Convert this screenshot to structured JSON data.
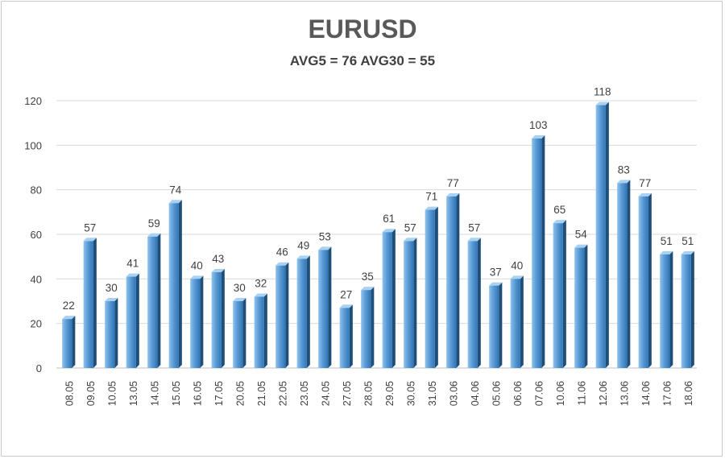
{
  "chart_data": {
    "type": "bar",
    "title": "EURUSD",
    "subtitle": "AVG5 = 76 AVG30 = 55",
    "categories": [
      "08.05",
      "09.05",
      "10.05",
      "13.05",
      "14.05",
      "15.05",
      "16.05",
      "17.05",
      "20.05",
      "21.05",
      "22.05",
      "23.05",
      "24.05",
      "27.05",
      "28.05",
      "29.05",
      "30.05",
      "31.05",
      "03.06",
      "04.06",
      "05.06",
      "06.06",
      "07.06",
      "10.06",
      "11.06",
      "12.06",
      "13.06",
      "14.06",
      "17.06",
      "18.06"
    ],
    "values": [
      22,
      57,
      30,
      41,
      59,
      74,
      40,
      43,
      30,
      32,
      46,
      49,
      53,
      27,
      35,
      61,
      57,
      71,
      77,
      57,
      37,
      40,
      103,
      65,
      54,
      118,
      83,
      77,
      51,
      51
    ],
    "ylim": [
      0,
      120
    ],
    "yticks": [
      0,
      20,
      40,
      60,
      80,
      100,
      120
    ],
    "xlabel": "",
    "ylabel": "",
    "grid": true,
    "legend": "none",
    "colors": {
      "bar_light": "#8ec3ee",
      "bar_mid": "#5b9bd5",
      "bar_dark": "#2f75b5",
      "bar_side": "#1f4e79",
      "grid": "#d9d9d9",
      "text": "#404040"
    }
  }
}
